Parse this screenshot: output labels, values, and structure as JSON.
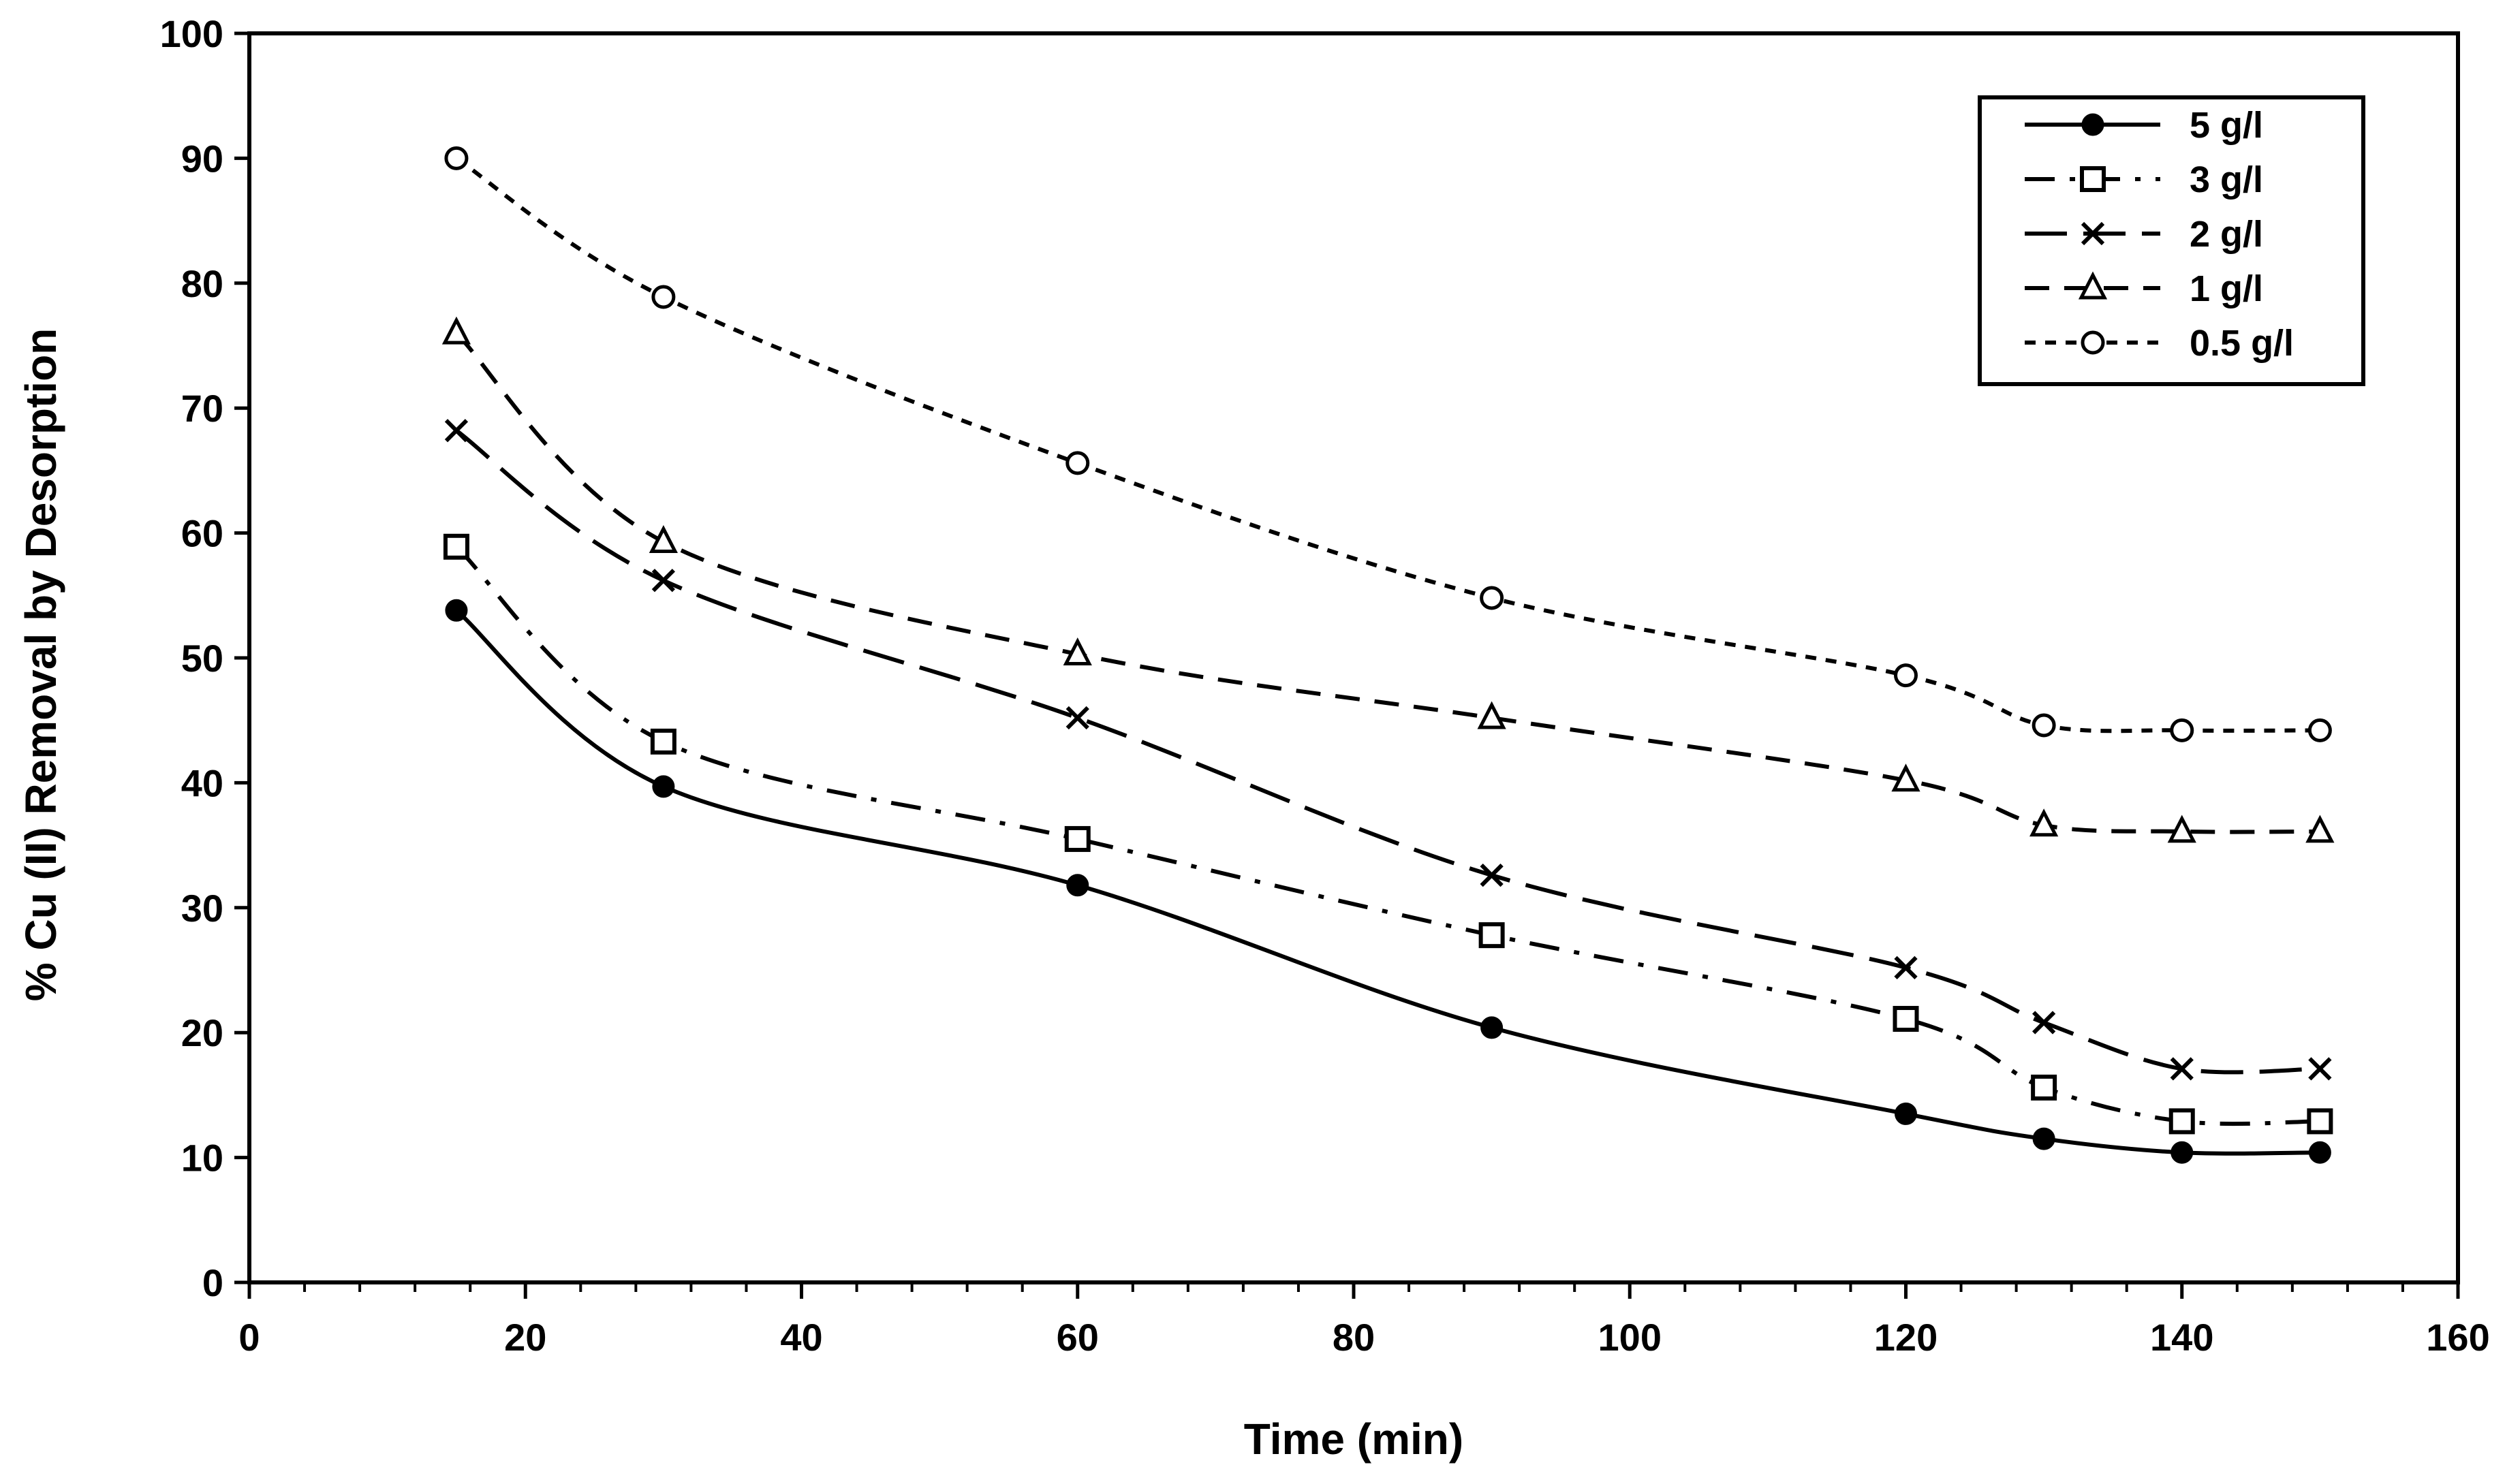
{
  "chart_data": {
    "type": "line",
    "title": "",
    "xlabel": "Time  (min)",
    "ylabel": "% Cu (II) Removal by Desorption",
    "xlim": [
      0,
      160
    ],
    "ylim": [
      0,
      100
    ],
    "xticks": [
      0,
      20,
      40,
      60,
      80,
      100,
      120,
      140,
      160
    ],
    "yticks": [
      0,
      10,
      20,
      30,
      40,
      50,
      60,
      70,
      80,
      90,
      100
    ],
    "x_minor_step": 4,
    "grid": false,
    "legend_position": "top-right",
    "x": [
      15,
      30,
      60,
      90,
      120,
      130,
      140,
      150
    ],
    "series": [
      {
        "name": "5 g/l",
        "marker": "filled-circle",
        "dash": "solid",
        "values": [
          53.8,
          39.7,
          31.8,
          20.4,
          13.5,
          11.5,
          10.4,
          10.4
        ]
      },
      {
        "name": "3 g/l",
        "marker": "open-square",
        "dash": "dash-dot",
        "values": [
          58.9,
          43.3,
          35.5,
          27.8,
          21.1,
          15.6,
          12.9,
          12.9
        ]
      },
      {
        "name": "2 g/l",
        "marker": "cross",
        "dash": "long-dash",
        "values": [
          68.2,
          56.2,
          45.2,
          32.6,
          25.2,
          20.8,
          17.1,
          17.1
        ]
      },
      {
        "name": "1 g/l",
        "marker": "open-triangle",
        "dash": "dash",
        "values": [
          76.0,
          59.3,
          50.3,
          45.2,
          40.2,
          36.6,
          36.1,
          36.1
        ]
      },
      {
        "name": "0.5 g/l",
        "marker": "open-circle",
        "dash": "short-dash",
        "values": [
          90.0,
          78.9,
          65.6,
          54.8,
          48.6,
          44.6,
          44.2,
          44.2
        ]
      }
    ]
  }
}
